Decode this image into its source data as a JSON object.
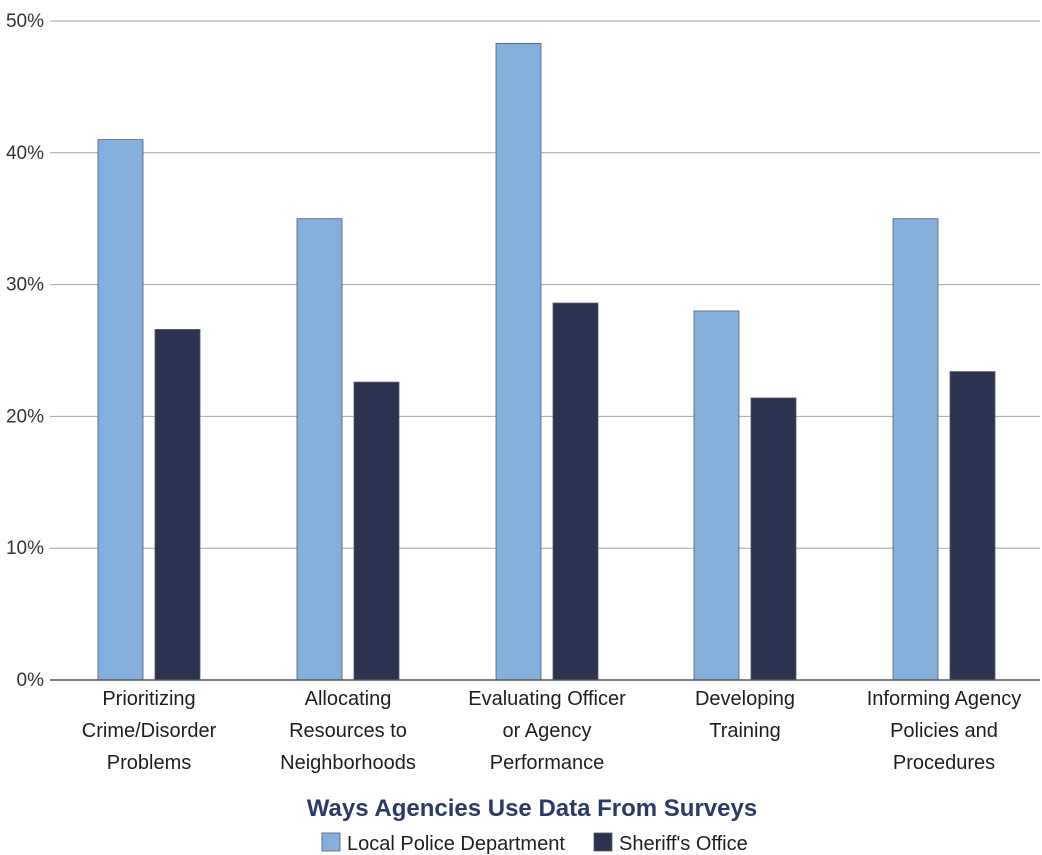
{
  "chart_data": {
    "type": "bar",
    "title": "Ways Agencies Use Data From  Surveys",
    "xlabel": "",
    "ylabel": "",
    "ylim": [
      0,
      50
    ],
    "yticks": [
      "0%",
      "10%",
      "20%",
      "30%",
      "40%",
      "50%"
    ],
    "grid": true,
    "legend_position": "bottom",
    "categories": [
      [
        "Prioritizing",
        "Crime/Disorder",
        "Problems"
      ],
      [
        "Allocating",
        "Resources to",
        "Neighborhoods"
      ],
      [
        "Evaluating Officer",
        "or Agency",
        "Performance"
      ],
      [
        "Developing",
        "Training"
      ],
      [
        "Informing Agency",
        "Policies and",
        "Procedures"
      ]
    ],
    "series": [
      {
        "name": "Local Police Department",
        "color": "#85b0de",
        "values": [
          41,
          35,
          48.3,
          28,
          35
        ]
      },
      {
        "name": "Sheriff's Office",
        "color": "#2b3350",
        "values": [
          26.6,
          22.6,
          28.6,
          21.4,
          23.4
        ]
      }
    ],
    "colors": {
      "title": "#2b3a66",
      "grid": "#a6a6a6",
      "axis": "#555555"
    }
  }
}
